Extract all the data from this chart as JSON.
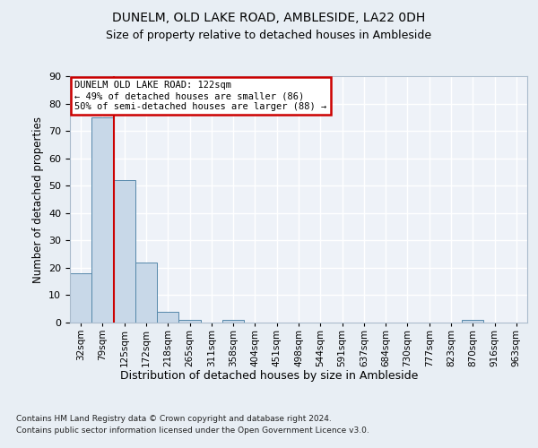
{
  "title": "DUNELM, OLD LAKE ROAD, AMBLESIDE, LA22 0DH",
  "subtitle": "Size of property relative to detached houses in Ambleside",
  "xlabel": "Distribution of detached houses by size in Ambleside",
  "ylabel": "Number of detached properties",
  "bar_color": "#c8d8e8",
  "bar_edgecolor": "#5588aa",
  "background_color": "#e8eef4",
  "plot_bg_color": "#eef2f8",
  "grid_color": "#ffffff",
  "bin_labels": [
    "32sqm",
    "79sqm",
    "125sqm",
    "172sqm",
    "218sqm",
    "265sqm",
    "311sqm",
    "358sqm",
    "404sqm",
    "451sqm",
    "498sqm",
    "544sqm",
    "591sqm",
    "637sqm",
    "684sqm",
    "730sqm",
    "777sqm",
    "823sqm",
    "870sqm",
    "916sqm",
    "963sqm"
  ],
  "values": [
    18,
    75,
    52,
    22,
    4,
    1,
    0,
    1,
    0,
    0,
    0,
    0,
    0,
    0,
    0,
    0,
    0,
    0,
    1,
    0,
    0
  ],
  "ylim": [
    0,
    90
  ],
  "yticks": [
    0,
    10,
    20,
    30,
    40,
    50,
    60,
    70,
    80,
    90
  ],
  "vline_x": 1.5,
  "vline_color": "#cc0000",
  "annotation_title": "DUNELM OLD LAKE ROAD: 122sqm",
  "annotation_line1": "← 49% of detached houses are smaller (86)",
  "annotation_line2": "50% of semi-detached houses are larger (88) →",
  "annotation_box_color": "#cc0000",
  "footer_line1": "Contains HM Land Registry data © Crown copyright and database right 2024.",
  "footer_line2": "Contains public sector information licensed under the Open Government Licence v3.0."
}
